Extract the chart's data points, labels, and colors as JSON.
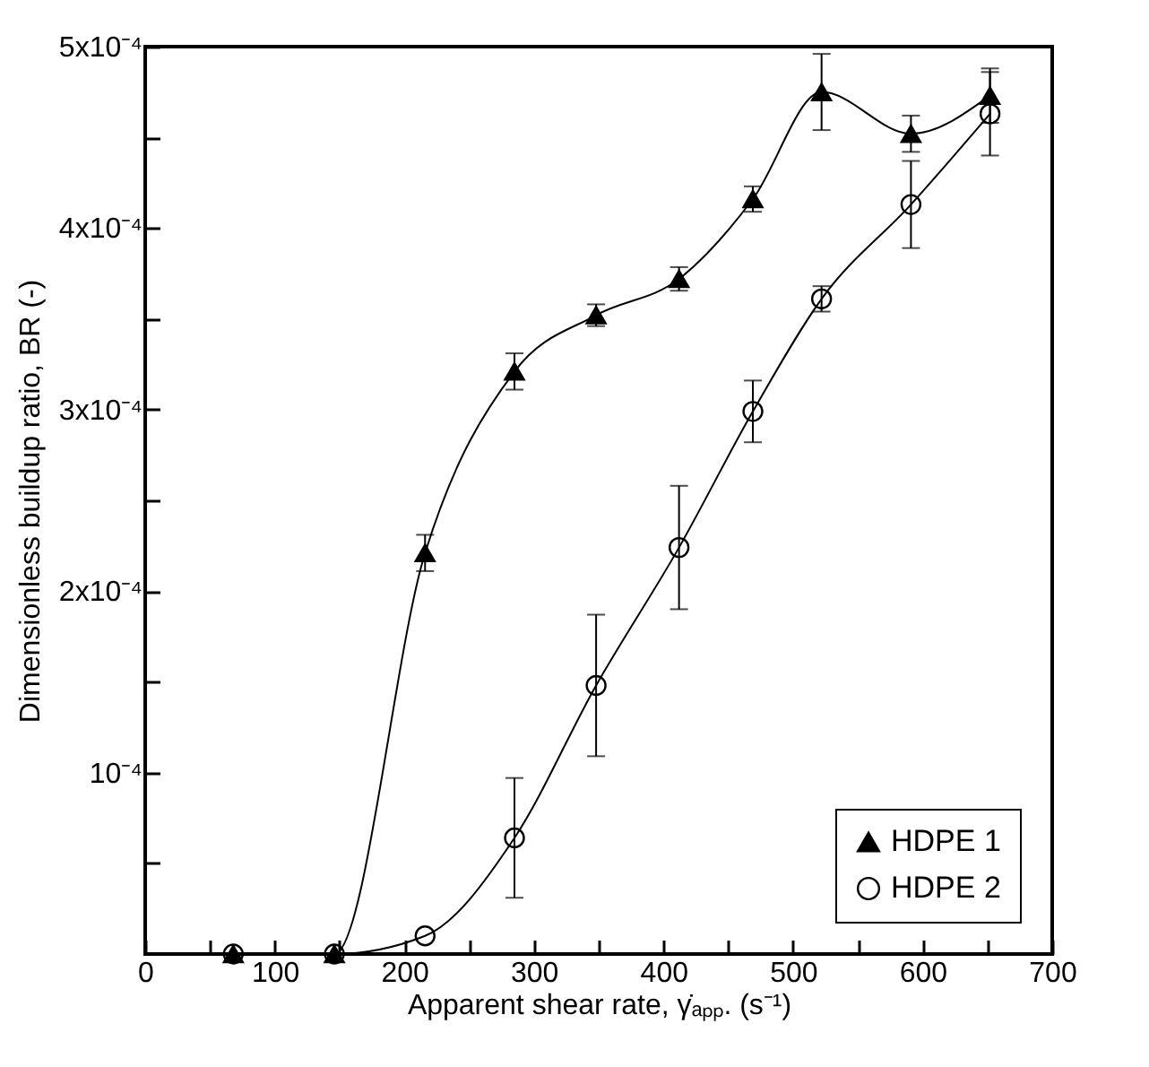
{
  "chart_data": {
    "type": "line",
    "xlabel": "Apparent shear rate, γ̇ₐₚₚ. (s⁻¹)",
    "ylabel": "Dimensionless buildup ratio, BR (-)",
    "x": [
      68,
      146,
      216,
      285,
      348,
      412,
      469,
      522,
      591,
      652
    ],
    "xlim": [
      0,
      700
    ],
    "xticks": [
      0,
      {
        "value": 50,
        "label": null
      },
      100,
      {
        "value": 150,
        "label": null
      },
      200,
      {
        "value": 250,
        "label": null
      },
      300,
      {
        "value": 350,
        "label": null
      },
      400,
      {
        "value": 450,
        "label": null
      },
      500,
      {
        "value": 550,
        "label": null
      },
      600,
      {
        "value": 650,
        "label": null
      },
      700
    ],
    "ylim": [
      0,
      0.0005
    ],
    "yticks": [
      {
        "value": 5e-05,
        "label": null
      },
      {
        "value": 0.0001,
        "label": "10⁻⁴"
      },
      {
        "value": 0.00015,
        "label": null
      },
      {
        "value": 0.0002,
        "label": "2x10⁻⁴"
      },
      {
        "value": 0.00025,
        "label": null
      },
      {
        "value": 0.0003,
        "label": "3x10⁻⁴"
      },
      {
        "value": 0.00035,
        "label": null
      },
      {
        "value": 0.0004,
        "label": "4x10⁻⁴"
      },
      {
        "value": 0.00045,
        "label": null
      },
      {
        "value": 0.0005,
        "label": "5x10⁻⁴"
      }
    ],
    "series": [
      {
        "name": "HDPE 1",
        "color": "#000000",
        "marker": "triangle",
        "values": [
          0.0,
          0.0,
          0.000221,
          0.000321,
          0.000352,
          0.000372,
          0.000416,
          0.000475,
          0.000452,
          0.000473
        ],
        "errors": [
          null,
          null,
          1e-05,
          1e-05,
          6e-06,
          6.5e-06,
          7e-06,
          2.1e-05,
          1e-05,
          1.5e-05
        ]
      },
      {
        "name": "HDPE 2",
        "color": "#000000",
        "marker": "circle",
        "values": [
          0.0,
          0.0,
          1e-05,
          6.4e-05,
          0.000148,
          0.000224,
          0.000299,
          0.000361,
          0.000413,
          0.000463
        ],
        "errors": [
          null,
          null,
          null,
          3.3e-05,
          3.9e-05,
          3.4e-05,
          1.7e-05,
          7e-06,
          2.4e-05,
          2.3e-05
        ]
      }
    ],
    "grid": false,
    "legend": "bottom right",
    "line_style": "solid"
  }
}
